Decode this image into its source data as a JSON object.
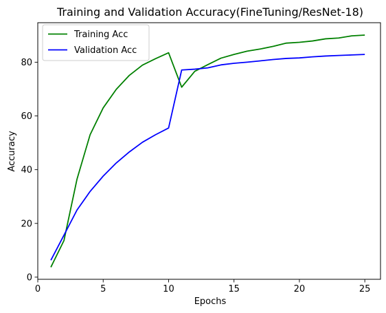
{
  "chart_data": {
    "type": "line",
    "title": "Training and Validation Accuracy(FineTuning/ResNet-18)",
    "xlabel": "Epochs",
    "ylabel": "Accuracy",
    "xlim": [
      0,
      26.2
    ],
    "ylim": [
      -0.8,
      94.7
    ],
    "xticks": [
      0,
      5,
      10,
      15,
      20,
      25
    ],
    "yticks": [
      0,
      20,
      40,
      60,
      80
    ],
    "grid": false,
    "legend_position": "upper-left",
    "x": [
      1,
      2,
      3,
      4,
      5,
      6,
      7,
      8,
      9,
      10,
      11,
      12,
      13,
      14,
      15,
      16,
      17,
      18,
      19,
      20,
      21,
      22,
      23,
      24,
      25
    ],
    "series": [
      {
        "name": "Training Acc",
        "color": "#008000",
        "values": [
          3.7,
          13.6,
          36.5,
          53.0,
          63.0,
          69.9,
          75.1,
          78.9,
          81.3,
          83.5,
          70.7,
          76.6,
          79.1,
          81.5,
          82.9,
          84.1,
          84.9,
          85.9,
          87.1,
          87.4,
          87.9,
          88.7,
          89.0,
          89.8,
          90.1
        ]
      },
      {
        "name": "Validation Acc",
        "color": "#0000ff",
        "values": [
          6.3,
          15.6,
          25.0,
          31.9,
          37.6,
          42.5,
          46.6,
          50.2,
          53.0,
          55.5,
          77.1,
          77.4,
          77.9,
          79.0,
          79.6,
          80.0,
          80.5,
          81.0,
          81.4,
          81.6,
          82.0,
          82.3,
          82.5,
          82.7,
          82.9
        ]
      }
    ]
  }
}
